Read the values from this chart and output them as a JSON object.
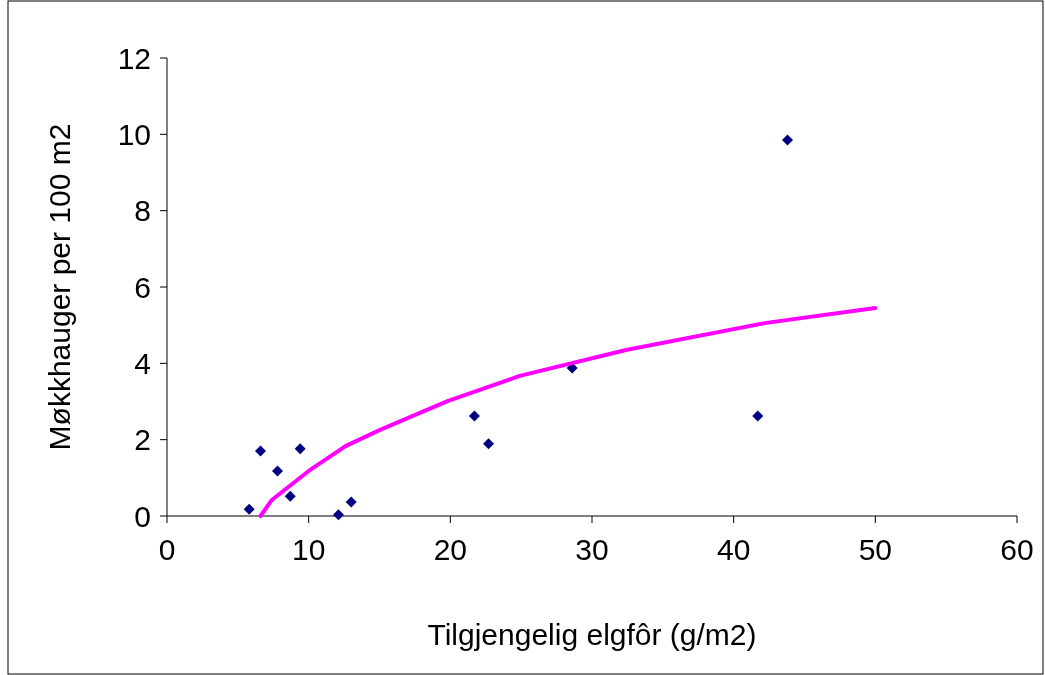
{
  "chart_data": {
    "type": "scatter",
    "xlabel": "Tilgjengelig elgfôr (g/m2)",
    "ylabel": "Møkkhauger per 100 m2",
    "xlim": [
      0,
      60
    ],
    "ylim": [
      0,
      12
    ],
    "xticks": [
      0,
      10,
      20,
      30,
      40,
      50,
      60
    ],
    "yticks": [
      0,
      2,
      4,
      6,
      8,
      10,
      12
    ],
    "grid": false,
    "marker": "diamond",
    "series": [
      {
        "color": "#000080",
        "x": [
          5.8,
          6.6,
          7.8,
          8.7,
          9.4,
          12.1,
          13.0,
          21.7,
          22.7,
          28.6,
          41.7,
          43.8
        ],
        "values": [
          0.18,
          1.7,
          1.18,
          0.52,
          1.76,
          0.03,
          0.37,
          2.62,
          1.89,
          3.88,
          2.62,
          9.85
        ]
      },
      {
        "type": "line",
        "color": "#ff00ff",
        "marker": "none",
        "line_style": "solid",
        "x": [
          6.6,
          7.4,
          10.0,
          12.6,
          15.0,
          19.8,
          24.9,
          32.4,
          42.3,
          50
        ],
        "values": [
          0,
          0.42,
          1.18,
          1.83,
          2.25,
          3.01,
          3.67,
          4.35,
          5.06,
          5.45
        ]
      }
    ]
  }
}
